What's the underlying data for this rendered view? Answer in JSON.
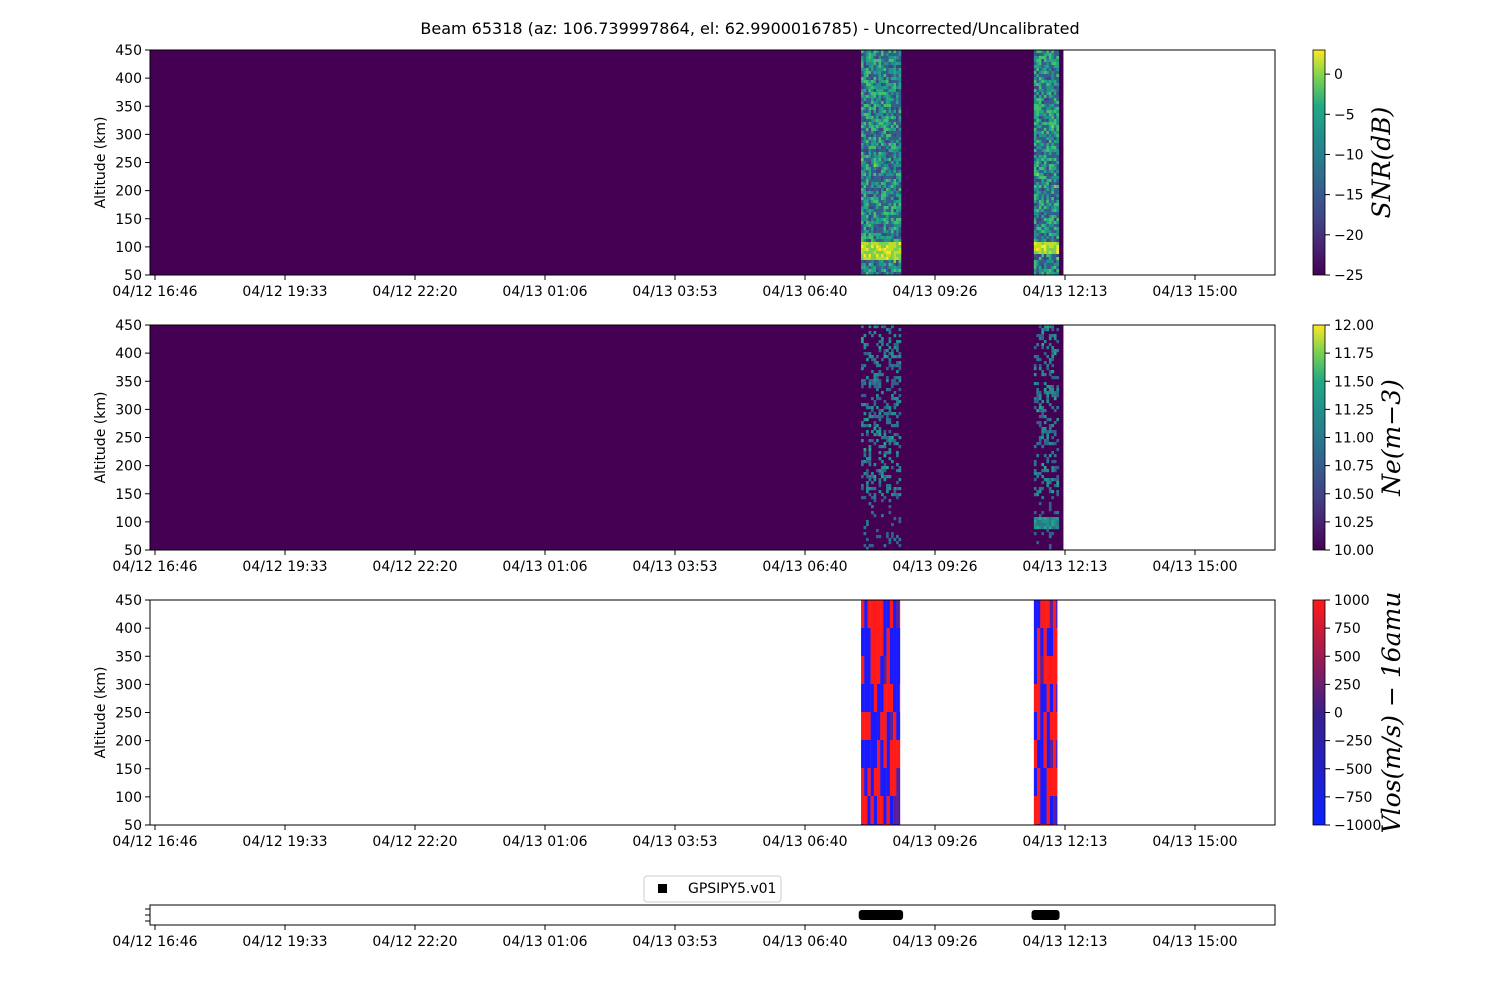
{
  "title": "Beam 65318 (az: 106.739997864, el: 62.9900016785) - Uncorrected/Uncalibrated",
  "colors": {
    "viridis_low": "#440154",
    "viridis_high": "#fde725",
    "vlos_low": "#0000ff",
    "vlos_high": "#ff0000",
    "track": "#000000"
  },
  "chart_data": [
    {
      "type": "heatmap",
      "name": "snr-panel",
      "ylabel": "Altitude (km)",
      "ylim": [
        50,
        450
      ],
      "yticks": [
        "50",
        "100",
        "150",
        "200",
        "250",
        "300",
        "350",
        "400",
        "450"
      ],
      "xticks": [
        "04/12 16:46",
        "04/12 19:33",
        "04/12 22:20",
        "04/13 01:06",
        "04/13 03:53",
        "04/13 06:40",
        "04/13 09:26",
        "04/13 12:13",
        "04/13 15:00"
      ],
      "colorbar": {
        "label": "SNR(dB)",
        "colormap": "viridis",
        "range": [
          -25,
          3
        ],
        "ticks": [
          "0",
          "−5",
          "−10",
          "−15",
          "−20",
          "−25"
        ]
      },
      "data_extent": [
        "04/12 16:46",
        "04/13 12:13"
      ],
      "background_value": -25,
      "measurement_blocks": [
        {
          "start": "04/13 07:53",
          "end": "04/13 08:43",
          "enhanced_layer_km": [
            80,
            110
          ]
        },
        {
          "start": "04/13 11:35",
          "end": "04/13 12:05",
          "enhanced_layer_km": [
            90,
            110
          ]
        }
      ]
    },
    {
      "type": "heatmap",
      "name": "ne-panel",
      "ylabel": "Altitude (km)",
      "ylim": [
        50,
        450
      ],
      "yticks": [
        "50",
        "100",
        "150",
        "200",
        "250",
        "300",
        "350",
        "400",
        "450"
      ],
      "xticks": [
        "04/12 16:46",
        "04/12 19:33",
        "04/12 22:20",
        "04/13 01:06",
        "04/13 03:53",
        "04/13 06:40",
        "04/13 09:26",
        "04/13 12:13",
        "04/13 15:00"
      ],
      "colorbar": {
        "label": "Ne(m−3)",
        "colormap": "viridis",
        "range": [
          10,
          12
        ],
        "ticks": [
          "12.00",
          "11.75",
          "11.50",
          "11.25",
          "11.00",
          "10.75",
          "10.50",
          "10.25",
          "10.00"
        ]
      },
      "data_extent": [
        "04/12 16:46",
        "04/13 12:13"
      ],
      "background_value": 10,
      "measurement_blocks": [
        {
          "start": "04/13 07:53",
          "end": "04/13 08:43",
          "enhanced_layer_km": [
            80,
            120
          ]
        },
        {
          "start": "04/13 11:35",
          "end": "04/13 12:05",
          "enhanced_layer_km": [
            90,
            110
          ]
        }
      ]
    },
    {
      "type": "heatmap",
      "name": "vlos-panel",
      "ylabel": "Altitude (km)",
      "ylim": [
        50,
        450
      ],
      "yticks": [
        "50",
        "100",
        "150",
        "200",
        "250",
        "300",
        "350",
        "400",
        "450"
      ],
      "xticks": [
        "04/12 16:46",
        "04/12 19:33",
        "04/12 22:20",
        "04/13 01:06",
        "04/13 03:53",
        "04/13 06:40",
        "04/13 09:26",
        "04/13 12:13",
        "04/13 15:00"
      ],
      "colorbar": {
        "label": "Vlos(m/s) − 16amu",
        "colormap": "blue-red",
        "range": [
          -1000,
          1000
        ],
        "ticks": [
          "1000",
          "750",
          "500",
          "250",
          "0",
          "−250",
          "−500",
          "−750",
          "−1000"
        ]
      },
      "measurement_blocks": [
        {
          "start": "04/13 07:53",
          "end": "04/13 08:43"
        },
        {
          "start": "04/13 11:35",
          "end": "04/13 12:05"
        }
      ]
    },
    {
      "type": "scatter",
      "name": "gps-track-panel",
      "legend": {
        "label": "GPSIPY5.v01",
        "placement": "top-center"
      },
      "xticks": [
        "04/12 16:46",
        "04/12 19:33",
        "04/12 22:20",
        "04/13 01:06",
        "04/13 03:53",
        "04/13 06:40",
        "04/13 09:26",
        "04/13 12:13",
        "04/13 15:00"
      ],
      "segments": [
        {
          "start": "04/13 07:50",
          "end": "04/13 08:47"
        },
        {
          "start": "04/13 11:32",
          "end": "04/13 12:08"
        }
      ]
    }
  ]
}
